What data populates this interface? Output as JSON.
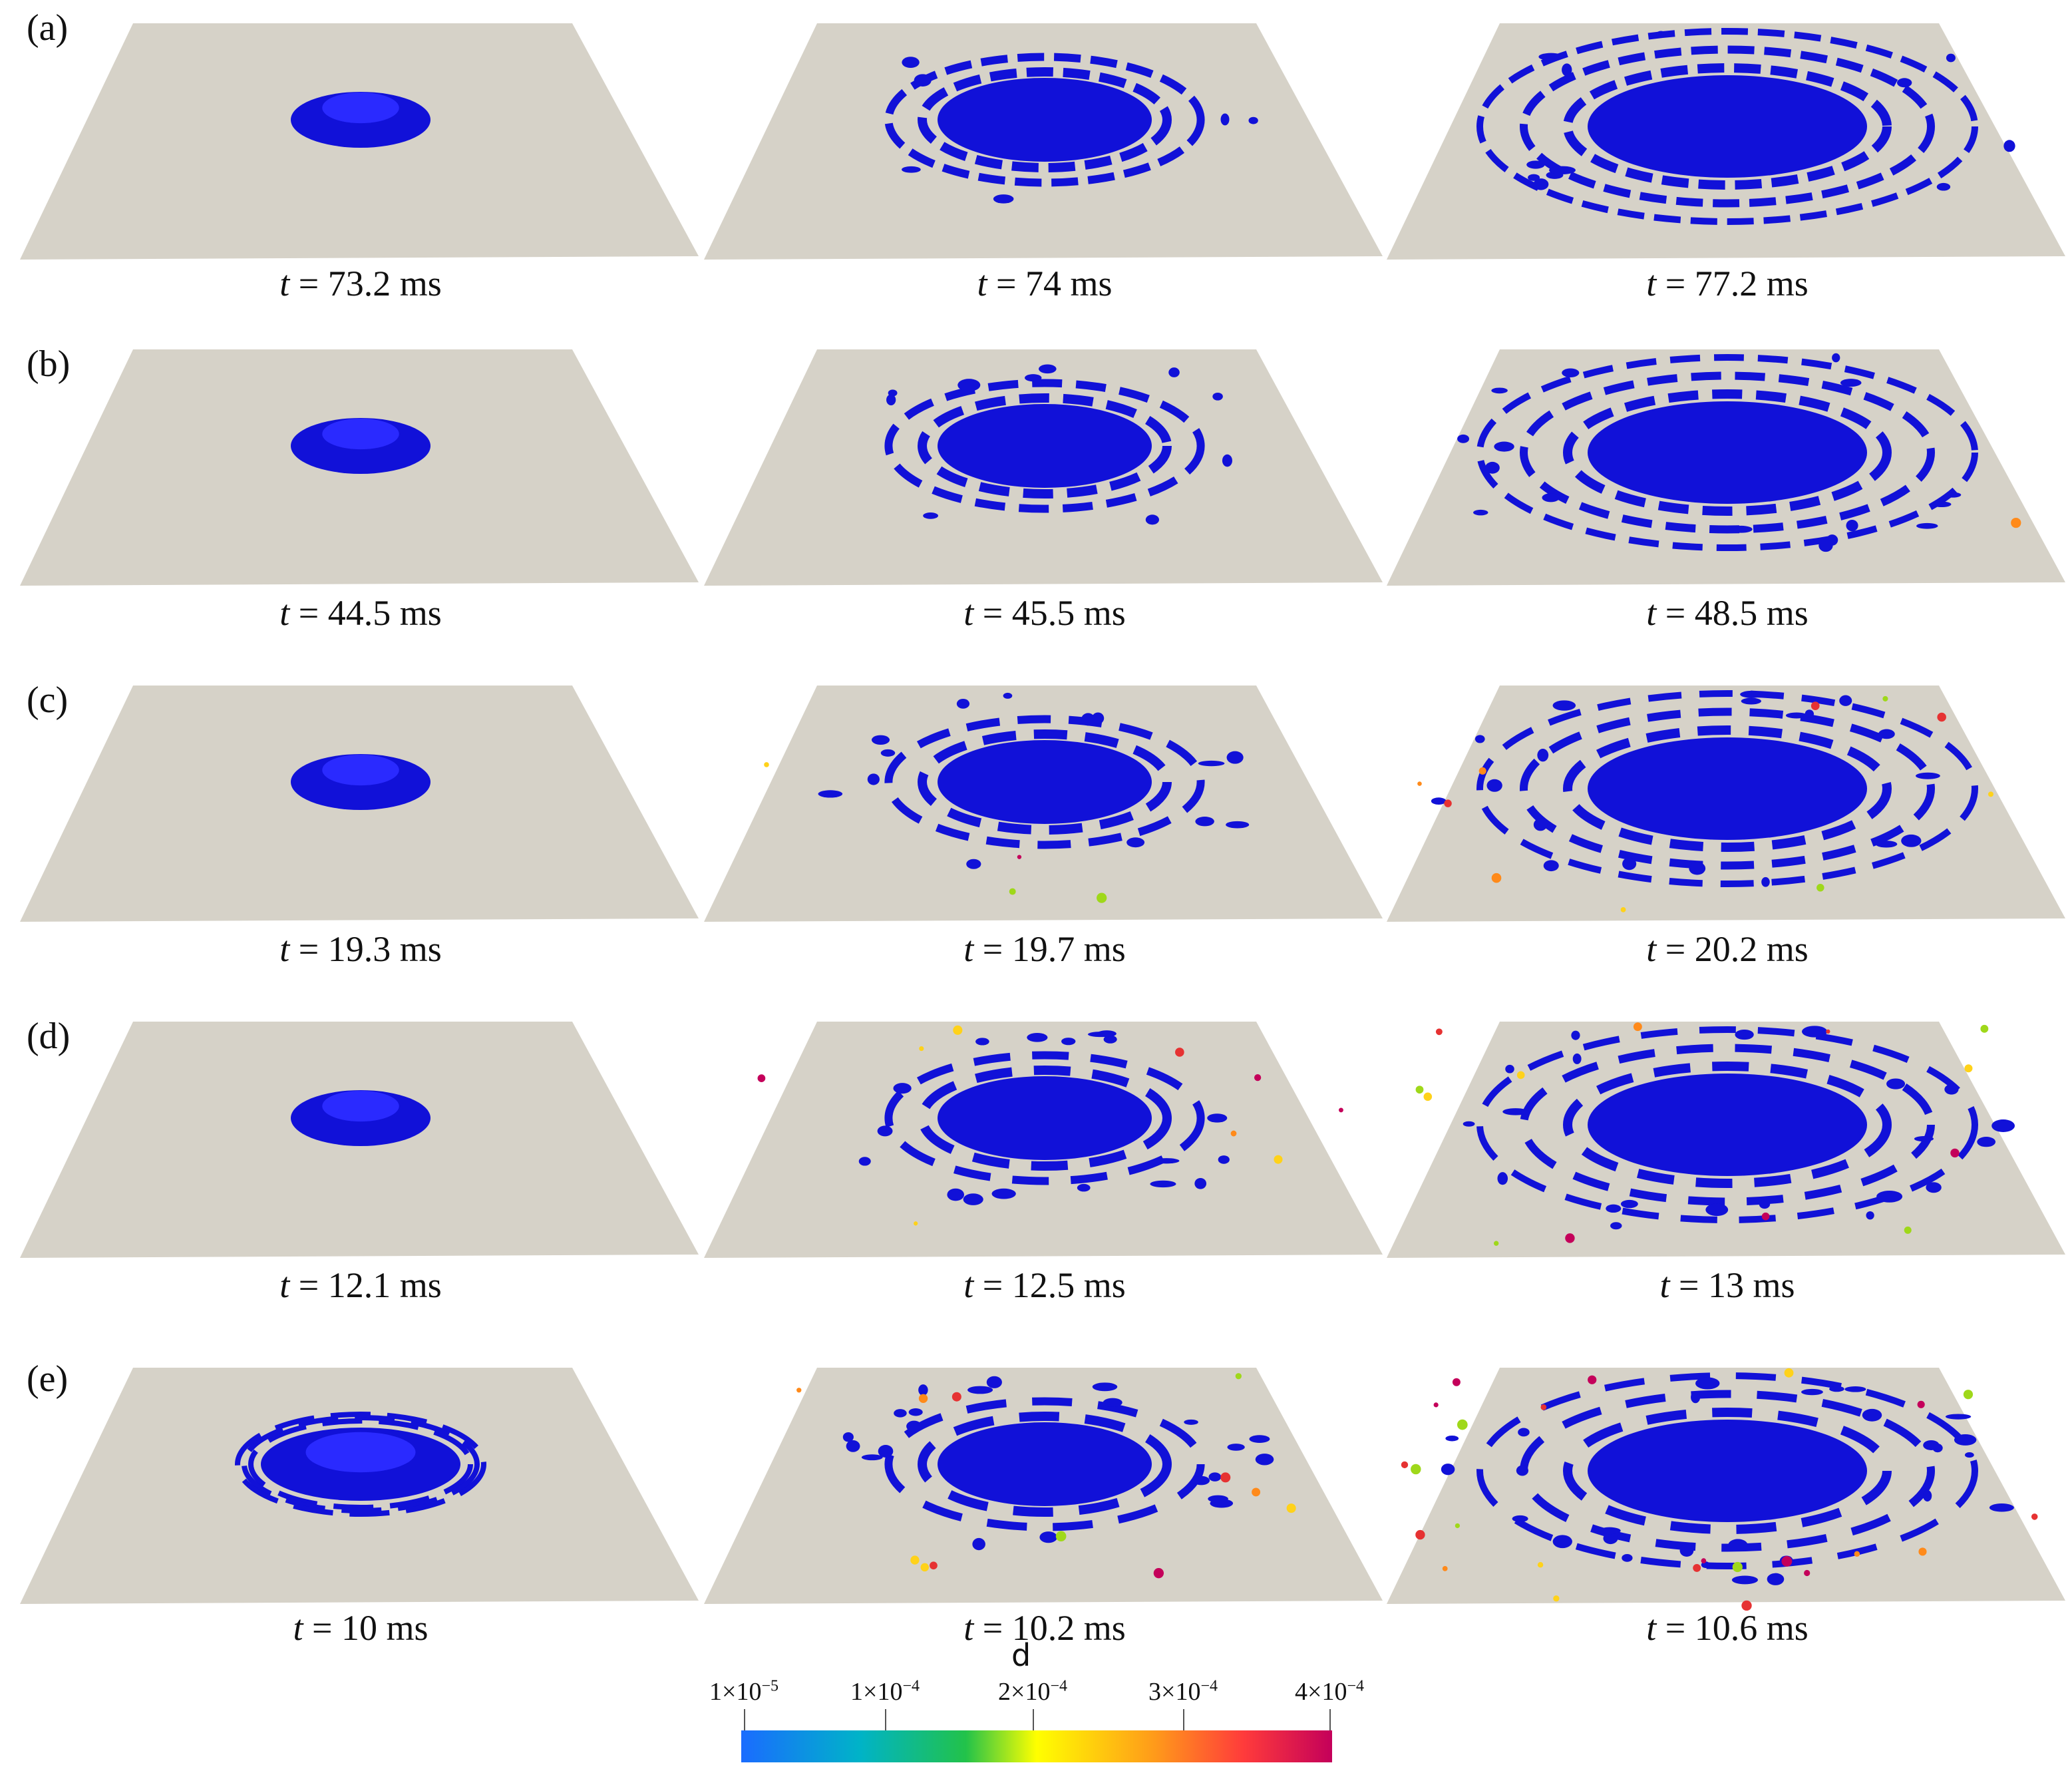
{
  "colors": {
    "plate": "#d6d2c8",
    "liquid": "#1111d8",
    "page_bg": "#ffffff"
  },
  "rows": [
    {
      "label": "(a)",
      "panels": [
        {
          "t_var": "t",
          "value": "= 73.2 ms",
          "stage": 0
        },
        {
          "t_var": "t",
          "value": "= 74 ms",
          "stage": 1
        },
        {
          "t_var": "t",
          "value": "= 77.2 ms",
          "stage": 2
        }
      ]
    },
    {
      "label": "(b)",
      "panels": [
        {
          "t_var": "t",
          "value": "= 44.5 ms",
          "stage": 0
        },
        {
          "t_var": "t",
          "value": "= 45.5 ms",
          "stage": 1
        },
        {
          "t_var": "t",
          "value": "= 48.5 ms",
          "stage": 2
        }
      ]
    },
    {
      "label": "(c)",
      "panels": [
        {
          "t_var": "t",
          "value": "= 19.3 ms",
          "stage": 0
        },
        {
          "t_var": "t",
          "value": "= 19.7 ms",
          "stage": 1
        },
        {
          "t_var": "t",
          "value": "= 20.2 ms",
          "stage": 2
        }
      ]
    },
    {
      "label": "(d)",
      "panels": [
        {
          "t_var": "t",
          "value": "= 12.1 ms",
          "stage": 0
        },
        {
          "t_var": "t",
          "value": "= 12.5 ms",
          "stage": 1
        },
        {
          "t_var": "t",
          "value": "= 13 ms",
          "stage": 2
        }
      ]
    },
    {
      "label": "(e)",
      "panels": [
        {
          "t_var": "t",
          "value": "= 10 ms",
          "stage": 0
        },
        {
          "t_var": "t",
          "value": "= 10.2 ms",
          "stage": 1
        },
        {
          "t_var": "t",
          "value": "= 10.6 ms",
          "stage": 2
        }
      ]
    }
  ],
  "colorbar": {
    "title": "d",
    "ticks": [
      {
        "mant": "1×10",
        "exp": "−5"
      },
      {
        "mant": "1×10",
        "exp": "−4"
      },
      {
        "mant": "2×10",
        "exp": "−4"
      },
      {
        "mant": "3×10",
        "exp": "−4"
      },
      {
        "mant": "4×10",
        "exp": "−4"
      }
    ],
    "gradient": [
      "#1a6cff",
      "#00b3c8",
      "#22c24a",
      "#ffff00",
      "#ff9a1a",
      "#ff3b3b",
      "#c4005a"
    ]
  }
}
